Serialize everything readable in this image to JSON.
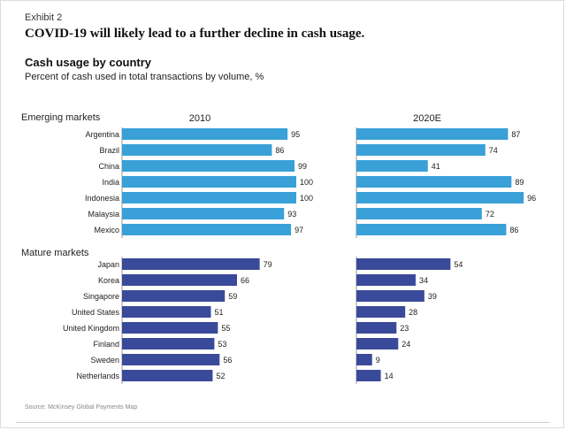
{
  "header": {
    "exhibit": "Exhibit 2",
    "headline": "COVID-19 will likely lead to a further decline in cash usage.",
    "subtitle": "Cash usage by country",
    "description": "Percent of cash used in total transactions by volume, %"
  },
  "source": "Source: McKinsey Global Payments Map",
  "chart_data": {
    "type": "bar",
    "orientation": "horizontal",
    "title": "Cash usage by country",
    "subtitle": "Percent of cash used in total transactions by volume, %",
    "panels": [
      "2010",
      "2020E"
    ],
    "groups": [
      {
        "name": "Emerging markets",
        "color": "#3aa0d8",
        "categories": [
          "Argentina",
          "Brazil",
          "China",
          "India",
          "Indonesia",
          "Malaysia",
          "Mexico"
        ],
        "series": [
          {
            "name": "2010",
            "values": [
              95,
              86,
              99,
              100,
              100,
              93,
              97
            ]
          },
          {
            "name": "2020E",
            "values": [
              87,
              74,
              41,
              89,
              96,
              72,
              86
            ]
          }
        ]
      },
      {
        "name": "Mature markets",
        "color": "#3a4a9a",
        "categories": [
          "Japan",
          "Korea",
          "Singapore",
          "United States",
          "United Kingdom",
          "Finland",
          "Sweden",
          "Netherlands"
        ],
        "series": [
          {
            "name": "2010",
            "values": [
              79,
              66,
              59,
              51,
              55,
              53,
              56,
              52
            ]
          },
          {
            "name": "2020E",
            "values": [
              54,
              34,
              39,
              28,
              23,
              24,
              9,
              14
            ]
          }
        ]
      }
    ],
    "xlim": [
      0,
      100
    ]
  }
}
